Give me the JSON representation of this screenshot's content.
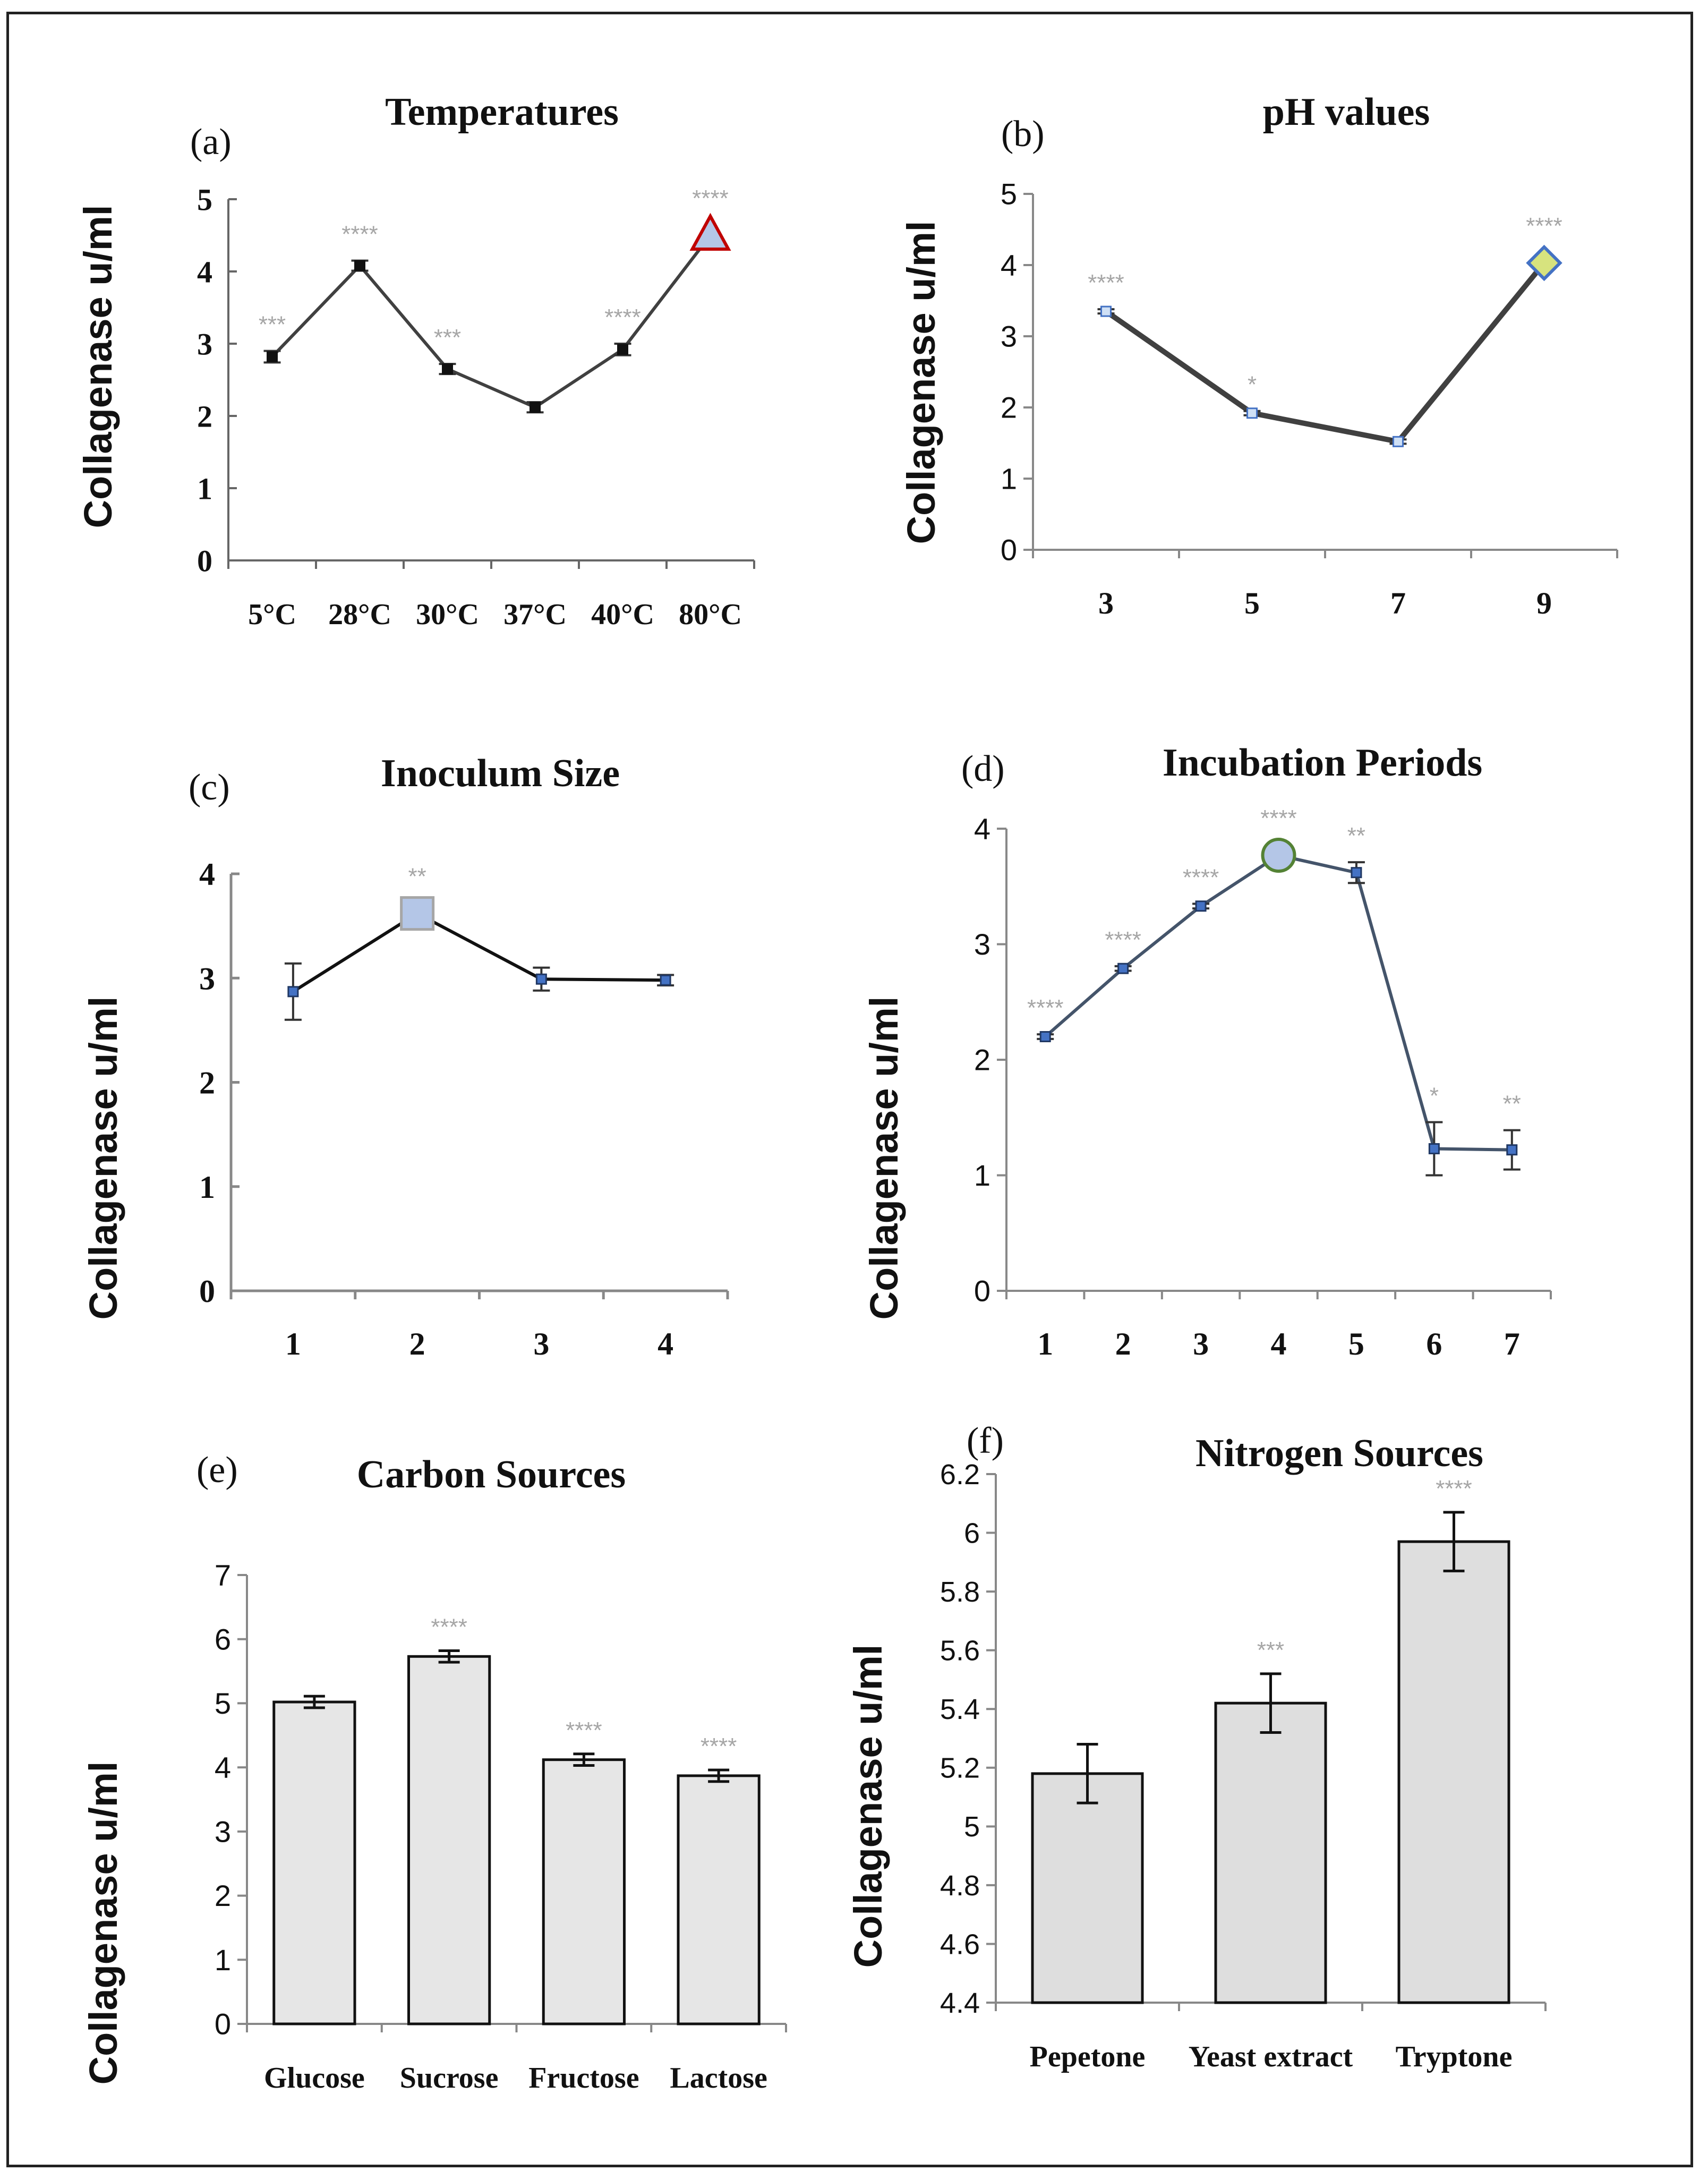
{
  "chart_data": [
    {
      "panel": "(a)",
      "type": "line",
      "title": "Temperatures",
      "ylabel": "Collagenase u/ml",
      "xlabel": "",
      "categories": [
        "5°C",
        "28°C",
        "30°C",
        "37°C",
        "40°C",
        "80°C"
      ],
      "values": [
        2.82,
        4.08,
        2.65,
        2.12,
        2.92,
        4.5
      ],
      "errors": [
        0.08,
        0.07,
        0.07,
        0.07,
        0.08,
        0.0
      ],
      "significance": [
        "***",
        "****",
        "***",
        "",
        "****",
        "****"
      ],
      "ylim": [
        0,
        5
      ],
      "yticks": [
        "0",
        "1",
        "2",
        "3",
        "4",
        "5"
      ],
      "highlight": {
        "index": 5,
        "marker": "triangle",
        "fill": "#b4c6e7",
        "stroke": "#c00000"
      }
    },
    {
      "panel": "(b)",
      "type": "line",
      "title": "pH values",
      "ylabel": "Collagenase u/ml",
      "xlabel": "",
      "categories": [
        "3",
        "5",
        "7",
        "9"
      ],
      "values": [
        3.35,
        1.92,
        1.52,
        4.03
      ],
      "errors": [
        0.03,
        0.03,
        0.03,
        0.0
      ],
      "significance": [
        "****",
        "*",
        "",
        "****"
      ],
      "ylim": [
        0,
        5
      ],
      "yticks": [
        "0",
        "1",
        "2",
        "3",
        "4",
        "5"
      ],
      "highlight": {
        "index": 3,
        "marker": "diamond",
        "fill": "#d7e37e",
        "stroke": "#4472c4"
      }
    },
    {
      "panel": "(c)",
      "type": "line",
      "title": "Inoculum Size",
      "ylabel": "Collagenase u/ml",
      "xlabel": "",
      "categories": [
        "1",
        "2",
        "3",
        "4"
      ],
      "values": [
        2.87,
        3.62,
        2.99,
        2.98
      ],
      "errors": [
        0.27,
        0.0,
        0.11,
        0.05
      ],
      "significance": [
        "",
        "**",
        "",
        ""
      ],
      "ylim": [
        0,
        4
      ],
      "yticks": [
        "0",
        "1",
        "2",
        "3",
        "4"
      ],
      "highlight": {
        "index": 1,
        "marker": "square",
        "fill": "#b4c6e7",
        "stroke": "#a6a6a6"
      }
    },
    {
      "panel": "(d)",
      "type": "line",
      "title": "Incubation Periods",
      "ylabel": "Collagenase u/ml",
      "xlabel": "",
      "categories": [
        "1",
        "2",
        "3",
        "4",
        "5",
        "6",
        "7"
      ],
      "values": [
        2.2,
        2.79,
        3.33,
        3.77,
        3.62,
        1.23,
        1.22
      ],
      "errors": [
        0.02,
        0.02,
        0.02,
        0.0,
        0.09,
        0.23,
        0.17
      ],
      "significance": [
        "****",
        "****",
        "****",
        "****",
        "**",
        "*",
        "**"
      ],
      "ylim": [
        0,
        4
      ],
      "yticks": [
        "0",
        "1",
        "2",
        "3",
        "4"
      ],
      "highlight": {
        "index": 3,
        "marker": "circle",
        "fill": "#b4c6e7",
        "stroke": "#548235"
      }
    },
    {
      "panel": "(e)",
      "type": "bar",
      "title": "Carbon Sources",
      "ylabel": "Collagenase u/ml",
      "xlabel": "",
      "categories": [
        "Glucose",
        "Sucrose",
        "Fructose",
        "Lactose"
      ],
      "values": [
        5.02,
        5.73,
        4.12,
        3.87
      ],
      "errors": [
        0.09,
        0.09,
        0.09,
        0.09
      ],
      "significance": [
        "",
        "****",
        "****",
        "****"
      ],
      "ylim": [
        0,
        7
      ],
      "yticks": [
        "0",
        "1",
        "2",
        "3",
        "4",
        "5",
        "6",
        "7"
      ]
    },
    {
      "panel": "(f)",
      "type": "bar",
      "title": "Nitrogen Sources",
      "ylabel": "Collagenase u/ml",
      "xlabel": "",
      "categories": [
        "Pepetone",
        "Yeast extract",
        "Tryptone"
      ],
      "values": [
        5.18,
        5.42,
        5.97
      ],
      "errors": [
        0.1,
        0.1,
        0.1
      ],
      "significance": [
        "",
        "***",
        "****"
      ],
      "ylim": [
        4.4,
        6.2
      ],
      "yticks": [
        "4.4",
        "4.6",
        "4.8",
        "5",
        "5.2",
        "5.4",
        "5.6",
        "5.8",
        "6",
        "6.2"
      ]
    }
  ]
}
